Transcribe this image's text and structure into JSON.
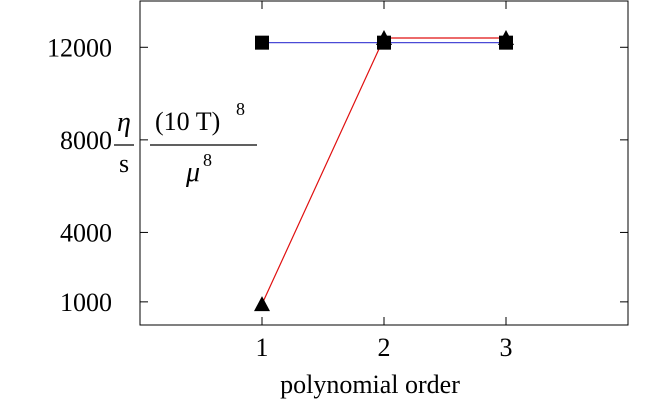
{
  "chart_data": {
    "type": "line",
    "x": [
      1,
      2,
      3
    ],
    "xlim": [
      0,
      4
    ],
    "ylim": [
      0,
      14000
    ],
    "xticks": [
      1,
      2,
      3
    ],
    "yticks": [
      1000,
      4000,
      8000,
      12000
    ],
    "xlabel": "polynomial order",
    "ylabel": {
      "eta": "η",
      "s": "s",
      "numerator_base": "(10 T)",
      "numerator_exp": "8",
      "mu": "μ",
      "denominator_exp": "8"
    },
    "grid": false,
    "series": [
      {
        "marker": "triangle",
        "color": "#e01010",
        "values": [
          900,
          12400,
          12400
        ]
      },
      {
        "marker": "square",
        "color": "#4a4ad6",
        "values": [
          12200,
          12200,
          12200
        ]
      }
    ]
  }
}
